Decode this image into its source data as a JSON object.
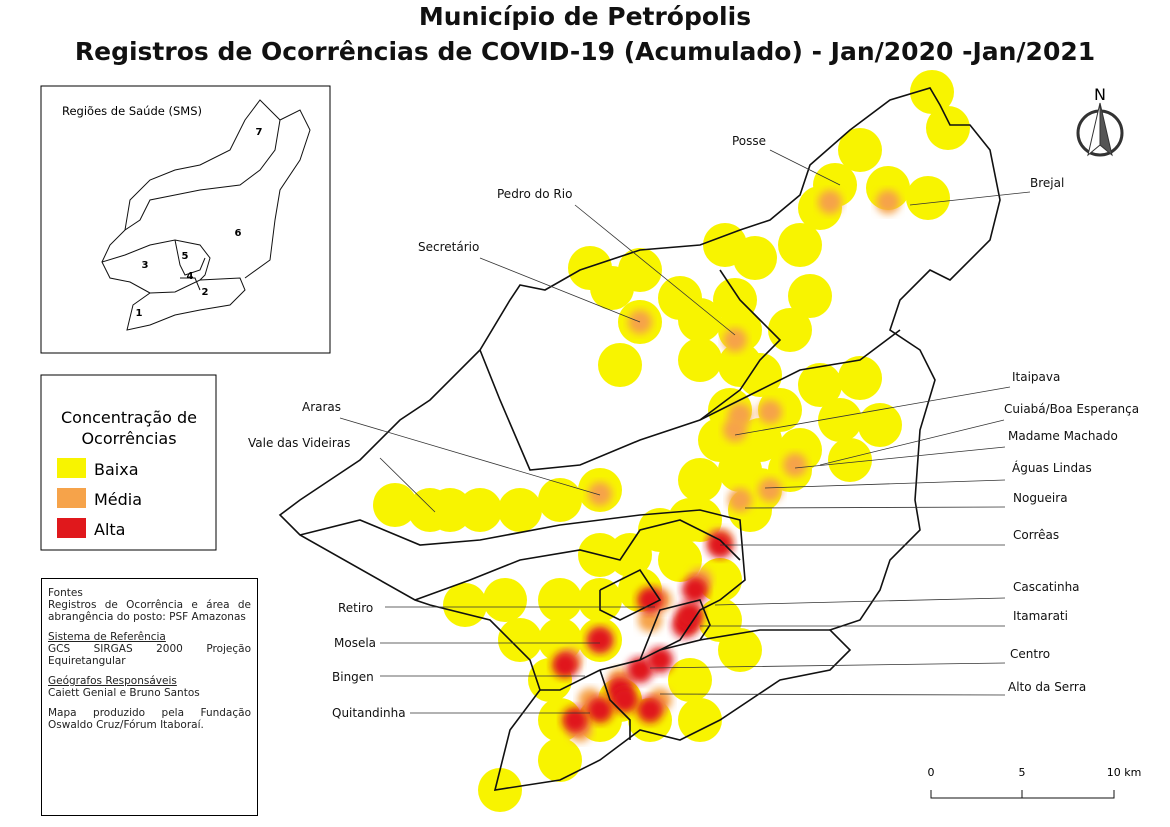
{
  "title": {
    "line1": "Município de Petrópolis",
    "line2": "Registros de Ocorrências de COVID-19 (Acumulado) - Jan/2020 -Jan/2021"
  },
  "inset": {
    "title": "Regiões de Saúde (SMS)",
    "regions": [
      "1",
      "2",
      "3",
      "4",
      "5",
      "6",
      "7"
    ]
  },
  "legend": {
    "title": "Concentração de Ocorrências",
    "items": [
      "Baixa",
      "Média",
      "Alta"
    ]
  },
  "sources": {
    "blocks": [
      {
        "heading": "Fontes",
        "text": "Registros de Ocorrência e área de abrangência do posto: PSF Amazonas"
      },
      {
        "heading": "Sistema de Referência",
        "text": "GCS SIRGAS 2000 Projeção Equiretangular"
      },
      {
        "heading": "Geógrafos Responsáveis",
        "text": "Caiett Genial e Bruno Santos"
      },
      {
        "heading": "Mapa produzido pela Fundação Oswaldo Cruz/Fórum Itaboraí.",
        "text": ""
      }
    ]
  },
  "places": [
    "Posse",
    "Brejal",
    "Pedro do Rio",
    "Secretário",
    "Itaipava",
    "Cuiabá/Boa Esperança",
    "Madame Machado",
    "Águas Lindas",
    "Nogueira",
    "Corrêas",
    "Cascatinha",
    "Itamarati",
    "Centro",
    "Alto da Serra",
    "Araras",
    "Vale das Videiras",
    "Retiro",
    "Mosela",
    "Bingen",
    "Quitandinha"
  ],
  "north": "N",
  "scale": [
    "0",
    "5",
    "10 km"
  ]
}
